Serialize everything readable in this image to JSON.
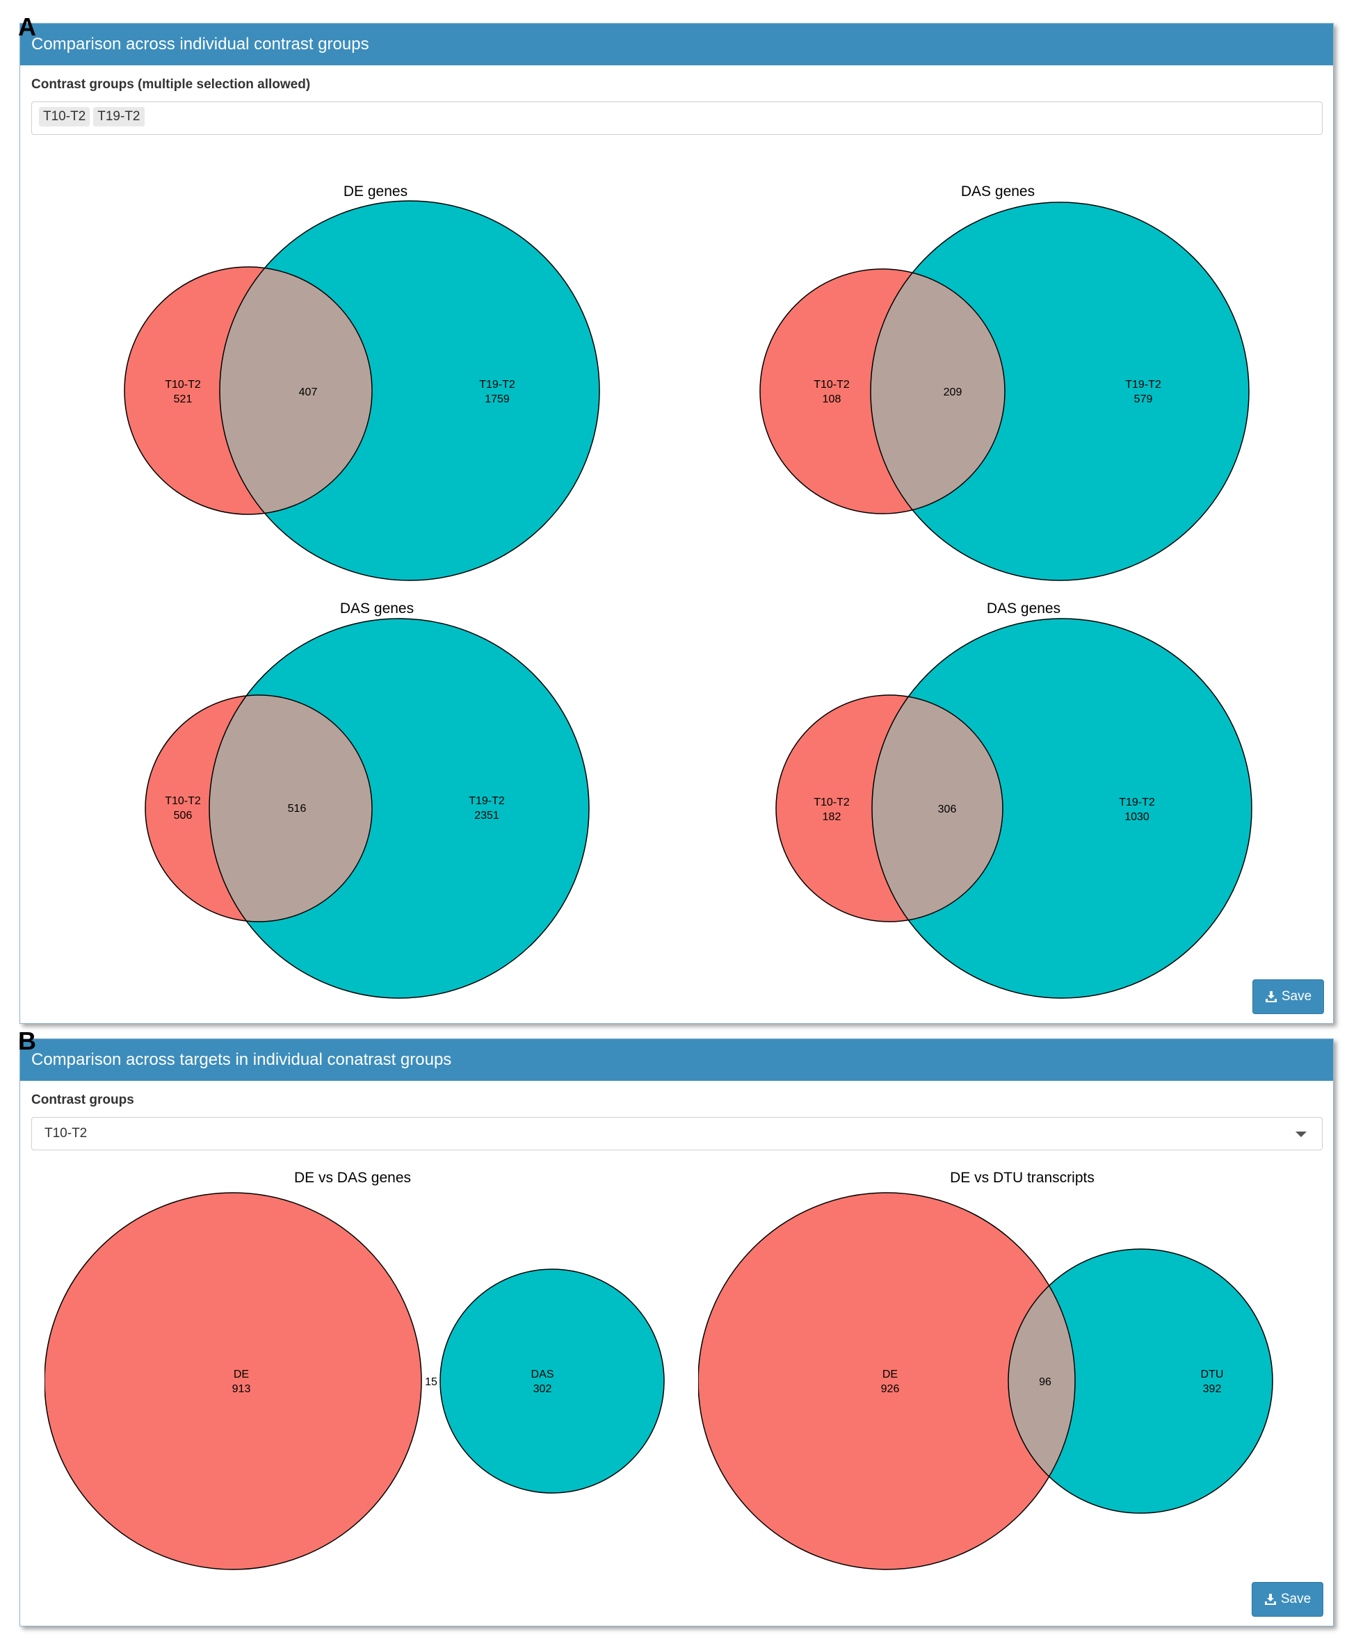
{
  "figure_labels": {
    "a": "A",
    "b": "B"
  },
  "panel_a": {
    "title": "Comparison across individual contrast groups",
    "selector_label": "Contrast groups (multiple selection allowed)",
    "selected": [
      "T10-T2",
      "T19-T2"
    ],
    "save_label": "Save",
    "save_icon": "download-icon"
  },
  "panel_b": {
    "title": "Comparison across targets in individual conatrast groups",
    "selector_label": "Contrast groups",
    "selected": "T10-T2",
    "save_label": "Save",
    "save_icon": "download-icon"
  },
  "colors": {
    "set_a": "#f8766d",
    "set_b": "#00bfc4",
    "overlap": "#b5a39b",
    "outline": "#000000"
  },
  "venns": {
    "v1": {
      "title": "DE genes",
      "left": {
        "name": "T10-T2",
        "count": "521"
      },
      "overlap": "407",
      "right": {
        "name": "T19-T2",
        "count": "1759"
      }
    },
    "v2": {
      "title": "DAS genes",
      "left": {
        "name": "T10-T2",
        "count": "108"
      },
      "overlap": "209",
      "right": {
        "name": "T19-T2",
        "count": "579"
      }
    },
    "v3": {
      "title": "DAS genes",
      "left": {
        "name": "T10-T2",
        "count": "506"
      },
      "overlap": "516",
      "right": {
        "name": "T19-T2",
        "count": "2351"
      }
    },
    "v4": {
      "title": "DAS genes",
      "left": {
        "name": "T10-T2",
        "count": "182"
      },
      "overlap": "306",
      "right": {
        "name": "T19-T2",
        "count": "1030"
      }
    },
    "v5": {
      "title": "DE vs DAS genes",
      "left": {
        "name": "DE",
        "count": "913"
      },
      "overlap": "15",
      "right": {
        "name": "DAS",
        "count": "302"
      }
    },
    "v6": {
      "title": "DE vs DTU transcripts",
      "left": {
        "name": "DE",
        "count": "926"
      },
      "overlap": "96",
      "right": {
        "name": "DTU",
        "count": "392"
      }
    }
  }
}
